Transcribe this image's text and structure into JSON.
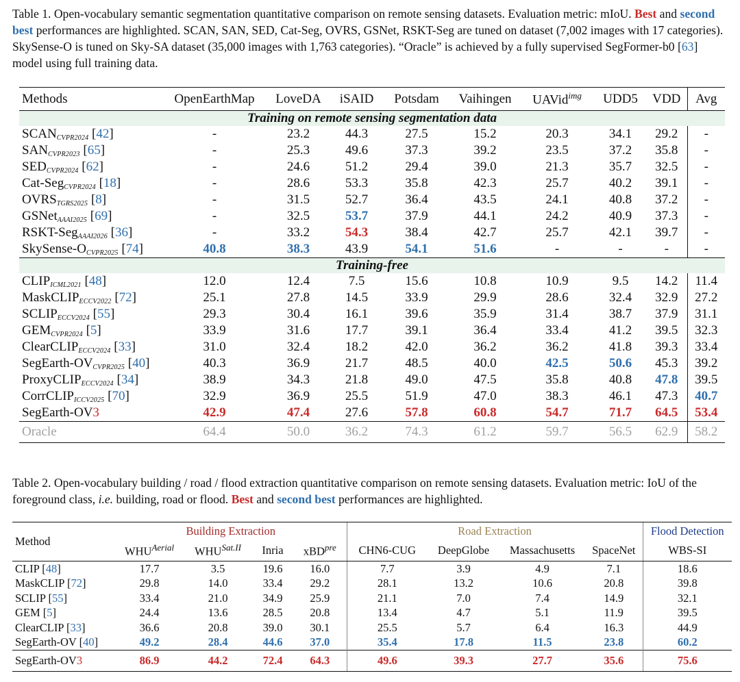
{
  "table1": {
    "caption_parts": {
      "p1": "Table 1. Open-vocabulary semantic segmentation quantitative comparison on remote sensing datasets. Evaluation metric: mIoU.",
      "best": "Best",
      "and": "and",
      "second": "second best",
      "p2": "performances are highlighted. SCAN, SAN, SED, Cat-Seg, OVRS, GSNet, RSKT-Seg are tuned on dataset (7,002 images with 17 categories). SkySense-O is tuned on Sky-SA dataset (35,000 images with 1,763 categories). “Oracle” is achieved by a fully supervised SegFormer-b0 [",
      "cite": "63",
      "p3": "] model using full training data."
    },
    "headers": {
      "methods": "Methods",
      "openearthmap": "OpenEarthMap",
      "loveda": "LoveDA",
      "isaid": "iSAID",
      "potsdam": "Potsdam",
      "vaihingen": "Vaihingen",
      "uavid": "UAVid",
      "uavid_sup": "img",
      "udd5": "UDD5",
      "vdd": "VDD",
      "avg": "Avg"
    },
    "section1": "Training on remote sensing segmentation data",
    "section2": "Training-free",
    "rows": [
      {
        "name": "SCAN",
        "venue": "CVPR2024",
        "cite": "42",
        "vals": [
          "-",
          "23.2",
          "44.3",
          "27.5",
          "15.2",
          "20.3",
          "34.1",
          "29.2",
          "-"
        ]
      },
      {
        "name": "SAN",
        "venue": "CVPR2023",
        "cite": "65",
        "vals": [
          "-",
          "25.3",
          "49.6",
          "37.3",
          "39.2",
          "23.5",
          "37.2",
          "35.8",
          "-"
        ]
      },
      {
        "name": "SED",
        "venue": "CVPR2024",
        "cite": "62",
        "vals": [
          "-",
          "24.6",
          "51.2",
          "29.4",
          "39.0",
          "21.3",
          "35.7",
          "32.5",
          "-"
        ]
      },
      {
        "name": "Cat-Seg",
        "venue": "CVPR2024",
        "cite": "18",
        "vals": [
          "-",
          "28.6",
          "53.3",
          "35.8",
          "42.3",
          "25.7",
          "40.2",
          "39.1",
          "-"
        ]
      },
      {
        "name": "OVRS",
        "venue": "TGRS2025",
        "cite": "8",
        "vals": [
          "-",
          "31.5",
          "52.7",
          "36.4",
          "43.5",
          "24.1",
          "40.8",
          "37.2",
          "-"
        ]
      },
      {
        "name": "GSNet",
        "venue": "AAAI2025",
        "cite": "69",
        "vals": [
          "-",
          "32.5",
          "53.7",
          "37.9",
          "44.1",
          "24.2",
          "40.9",
          "37.3",
          "-"
        ]
      },
      {
        "name": "RSKT-Seg",
        "venue": "AAAI2026",
        "cite": "36",
        "vals": [
          "-",
          "33.2",
          "54.3",
          "38.4",
          "42.7",
          "25.7",
          "42.1",
          "39.7",
          "-"
        ]
      },
      {
        "name": "SkySense-O",
        "venue": "CVPR2025",
        "cite": "74",
        "vals": [
          "40.8",
          "38.3",
          "43.9",
          "54.1",
          "51.6",
          "-",
          "-",
          "-",
          "-"
        ]
      }
    ],
    "rows_free": [
      {
        "name": "CLIP",
        "venue": "ICML2021",
        "cite": "48",
        "vals": [
          "12.0",
          "12.4",
          "7.5",
          "15.6",
          "10.8",
          "10.9",
          "9.5",
          "14.2",
          "11.4"
        ]
      },
      {
        "name": "MaskCLIP",
        "venue": "ECCV2022",
        "cite": "72",
        "vals": [
          "25.1",
          "27.8",
          "14.5",
          "33.9",
          "29.9",
          "28.6",
          "32.4",
          "32.9",
          "27.2"
        ]
      },
      {
        "name": "SCLIP",
        "venue": "ECCV2024",
        "cite": "55",
        "vals": [
          "29.3",
          "30.4",
          "16.1",
          "39.6",
          "35.9",
          "31.4",
          "38.7",
          "37.9",
          "31.1"
        ]
      },
      {
        "name": "GEM",
        "venue": "CVPR2024",
        "cite": "5",
        "vals": [
          "33.9",
          "31.6",
          "17.7",
          "39.1",
          "36.4",
          "33.4",
          "41.2",
          "39.5",
          "32.3"
        ]
      },
      {
        "name": "ClearCLIP",
        "venue": "ECCV2024",
        "cite": "33",
        "vals": [
          "31.0",
          "32.4",
          "18.2",
          "42.0",
          "36.2",
          "36.2",
          "41.8",
          "39.3",
          "33.4"
        ]
      },
      {
        "name": "SegEarth-OV",
        "venue": "CVPR2025",
        "cite": "40",
        "vals": [
          "40.3",
          "36.9",
          "21.7",
          "48.5",
          "40.0",
          "42.5",
          "50.6",
          "45.3",
          "39.2"
        ]
      },
      {
        "name": "ProxyCLIP",
        "venue": "ECCV2024",
        "cite": "34",
        "vals": [
          "38.9",
          "34.3",
          "21.8",
          "49.0",
          "47.5",
          "35.8",
          "40.8",
          "47.8",
          "39.5"
        ]
      },
      {
        "name": "CorrCLIP",
        "venue": "ICCV2025",
        "cite": "70",
        "vals": [
          "32.9",
          "36.9",
          "25.5",
          "51.9",
          "47.0",
          "38.3",
          "46.1",
          "47.3",
          "40.7"
        ]
      }
    ],
    "ours": {
      "name": "SegEarth-OV",
      "suffix": "3",
      "vals": [
        "42.9",
        "47.4",
        "27.6",
        "57.8",
        "60.8",
        "54.7",
        "71.7",
        "64.5",
        "53.4"
      ]
    },
    "oracle": {
      "name": "Oracle",
      "vals": [
        "64.4",
        "50.0",
        "36.2",
        "74.3",
        "61.2",
        "59.7",
        "56.5",
        "62.9",
        "58.2"
      ]
    }
  },
  "table2": {
    "caption_parts": {
      "p1": "Table 2. Open-vocabulary building / road / flood extraction quantitative comparison on remote sensing datasets. Evaluation metric: IoU of the foreground class,",
      "ie": "i.e.",
      "p2": "building, road or flood.",
      "best": "Best",
      "and": "and",
      "second": "second best",
      "p3": "performances are highlighted."
    },
    "groups": {
      "building": "Building Extraction",
      "road": "Road Extraction",
      "flood": "Flood Detection"
    },
    "headers": {
      "method": "Method",
      "whu": "WHU",
      "whu_sup": "Aerial",
      "whu2": "WHU",
      "whu2_sup": "Sat.II",
      "inria": "Inria",
      "xbd": "xBD",
      "xbd_sup": "pre",
      "chn6": "CHN6-CUG",
      "deepglobe": "DeepGlobe",
      "mass": "Massachusetts",
      "spacenet": "SpaceNet",
      "wbs": "WBS-SI"
    },
    "rows": [
      {
        "name": "CLIP",
        "cite": "48",
        "vals": [
          "17.7",
          "3.5",
          "19.6",
          "16.0",
          "7.7",
          "3.9",
          "4.9",
          "7.1",
          "18.6"
        ]
      },
      {
        "name": "MaskCLIP",
        "cite": "72",
        "vals": [
          "29.8",
          "14.0",
          "33.4",
          "29.2",
          "28.1",
          "13.2",
          "10.6",
          "20.8",
          "39.8"
        ]
      },
      {
        "name": "SCLIP",
        "cite": "55",
        "vals": [
          "33.4",
          "21.0",
          "34.9",
          "25.9",
          "21.1",
          "7.0",
          "7.4",
          "14.9",
          "32.1"
        ]
      },
      {
        "name": "GEM",
        "cite": "5",
        "vals": [
          "24.4",
          "13.6",
          "28.5",
          "20.8",
          "13.4",
          "4.7",
          "5.1",
          "11.9",
          "39.5"
        ]
      },
      {
        "name": "ClearCLIP",
        "cite": "33",
        "vals": [
          "36.6",
          "20.8",
          "39.0",
          "30.1",
          "25.5",
          "5.7",
          "6.4",
          "16.3",
          "44.9"
        ]
      },
      {
        "name": "SegEarth-OV",
        "cite": "40",
        "vals": [
          "49.2",
          "28.4",
          "44.6",
          "37.0",
          "35.4",
          "17.8",
          "11.5",
          "23.8",
          "60.2"
        ]
      }
    ],
    "ours": {
      "name": "SegEarth-OV",
      "suffix": "3",
      "vals": [
        "86.9",
        "44.2",
        "72.4",
        "64.3",
        "49.6",
        "39.3",
        "27.7",
        "35.6",
        "75.6"
      ]
    }
  }
}
